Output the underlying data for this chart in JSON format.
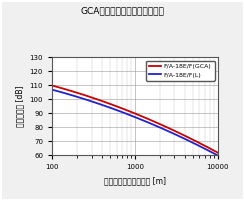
{
  "title": "GCAと普競機の騒音レベル比較",
  "xlabel": "スラントディスタンス [m]",
  "ylabel": "騒音レベル [dB]",
  "xlim": [
    100,
    10000
  ],
  "ylim": [
    60,
    130
  ],
  "yticks": [
    60,
    70,
    80,
    90,
    100,
    110,
    120,
    130
  ],
  "xticks": [
    100,
    1000,
    10000
  ],
  "line1_label": "F/A-18E/F(GCA)",
  "line1_color": "#cc0000",
  "line2_label": "F/A-18E/F(L)",
  "line2_color": "#2222cc",
  "background_color": "#f0f0f0",
  "plot_bg_color": "#ffffff",
  "grid_color": "#999999",
  "border_color": "#555555"
}
